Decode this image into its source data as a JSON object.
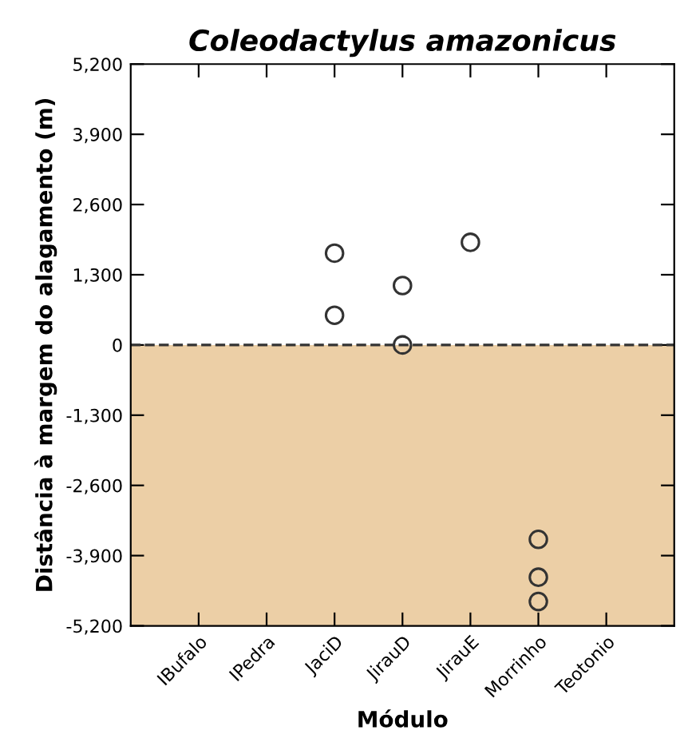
{
  "chart_data": {
    "type": "scatter",
    "title": "Coleodactylus amazonicus",
    "xlabel": "Módulo",
    "ylabel": "Distância à margem do alagamento (m)",
    "categories": [
      "IBufalo",
      "IPedra",
      "JaciD",
      "JirauD",
      "JirauE",
      "Morrinho",
      "Teotonio"
    ],
    "series": [
      {
        "color": "#333333",
        "x": [
          "JaciD",
          "JaciD",
          "JirauD",
          "JirauD",
          "JirauE",
          "Morrinho",
          "Morrinho",
          "Morrinho"
        ],
        "values": [
          1700,
          550,
          1100,
          0,
          1900,
          -3600,
          -4300,
          -4750
        ]
      }
    ],
    "ylim": [
      -5200,
      5200
    ],
    "yticks": [
      {
        "value": -5200,
        "label": "-5,200"
      },
      {
        "value": -3900,
        "label": "-3,900"
      },
      {
        "value": -2600,
        "label": "-2,600"
      },
      {
        "value": -1300,
        "label": "-1,300"
      },
      0,
      {
        "value": 1300,
        "label": "1,300"
      },
      {
        "value": 2600,
        "label": "2,600"
      },
      {
        "value": 3900,
        "label": "3,900"
      },
      {
        "value": 5200,
        "label": "5,200"
      }
    ],
    "ref_lines": [
      {
        "axis": "y",
        "value": 0,
        "color": "#333333",
        "line_style": "dashed"
      }
    ],
    "bands": [
      {
        "axis": "y",
        "from": -5200,
        "to": 0,
        "color": "#eccfa6"
      }
    ],
    "marker": "circle",
    "grid": false,
    "legend": false
  }
}
